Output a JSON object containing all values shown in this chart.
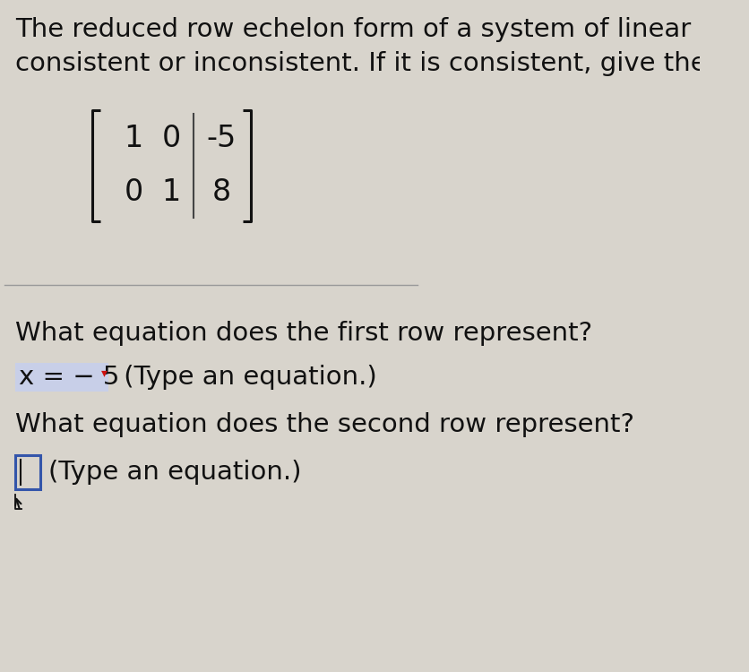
{
  "background_color": "#d8d4cc",
  "text_color": "#111111",
  "line1": "The reduced row echelon form of a system of linear è",
  "line2": "consistent or inconsistent. If it is consistent, give the s̀",
  "matrix_row1": [
    "1",
    "0",
    "-5"
  ],
  "matrix_row2": [
    "0",
    "1",
    "8"
  ],
  "question1": "What equation does the first row represent?",
  "answer1_text": "x = − 5",
  "answer1_highlight": "#c8cfe8",
  "answer1_suffix": " (Type an equation.)",
  "question2": "What equation does the second row represent?",
  "answer2_suffix": "(Type an equation.)",
  "sep_line_color": "#999999",
  "box2_border_color": "#3355aa",
  "cursor_color": "#cc1111",
  "font_size_text": 21,
  "font_size_matrix": 24
}
